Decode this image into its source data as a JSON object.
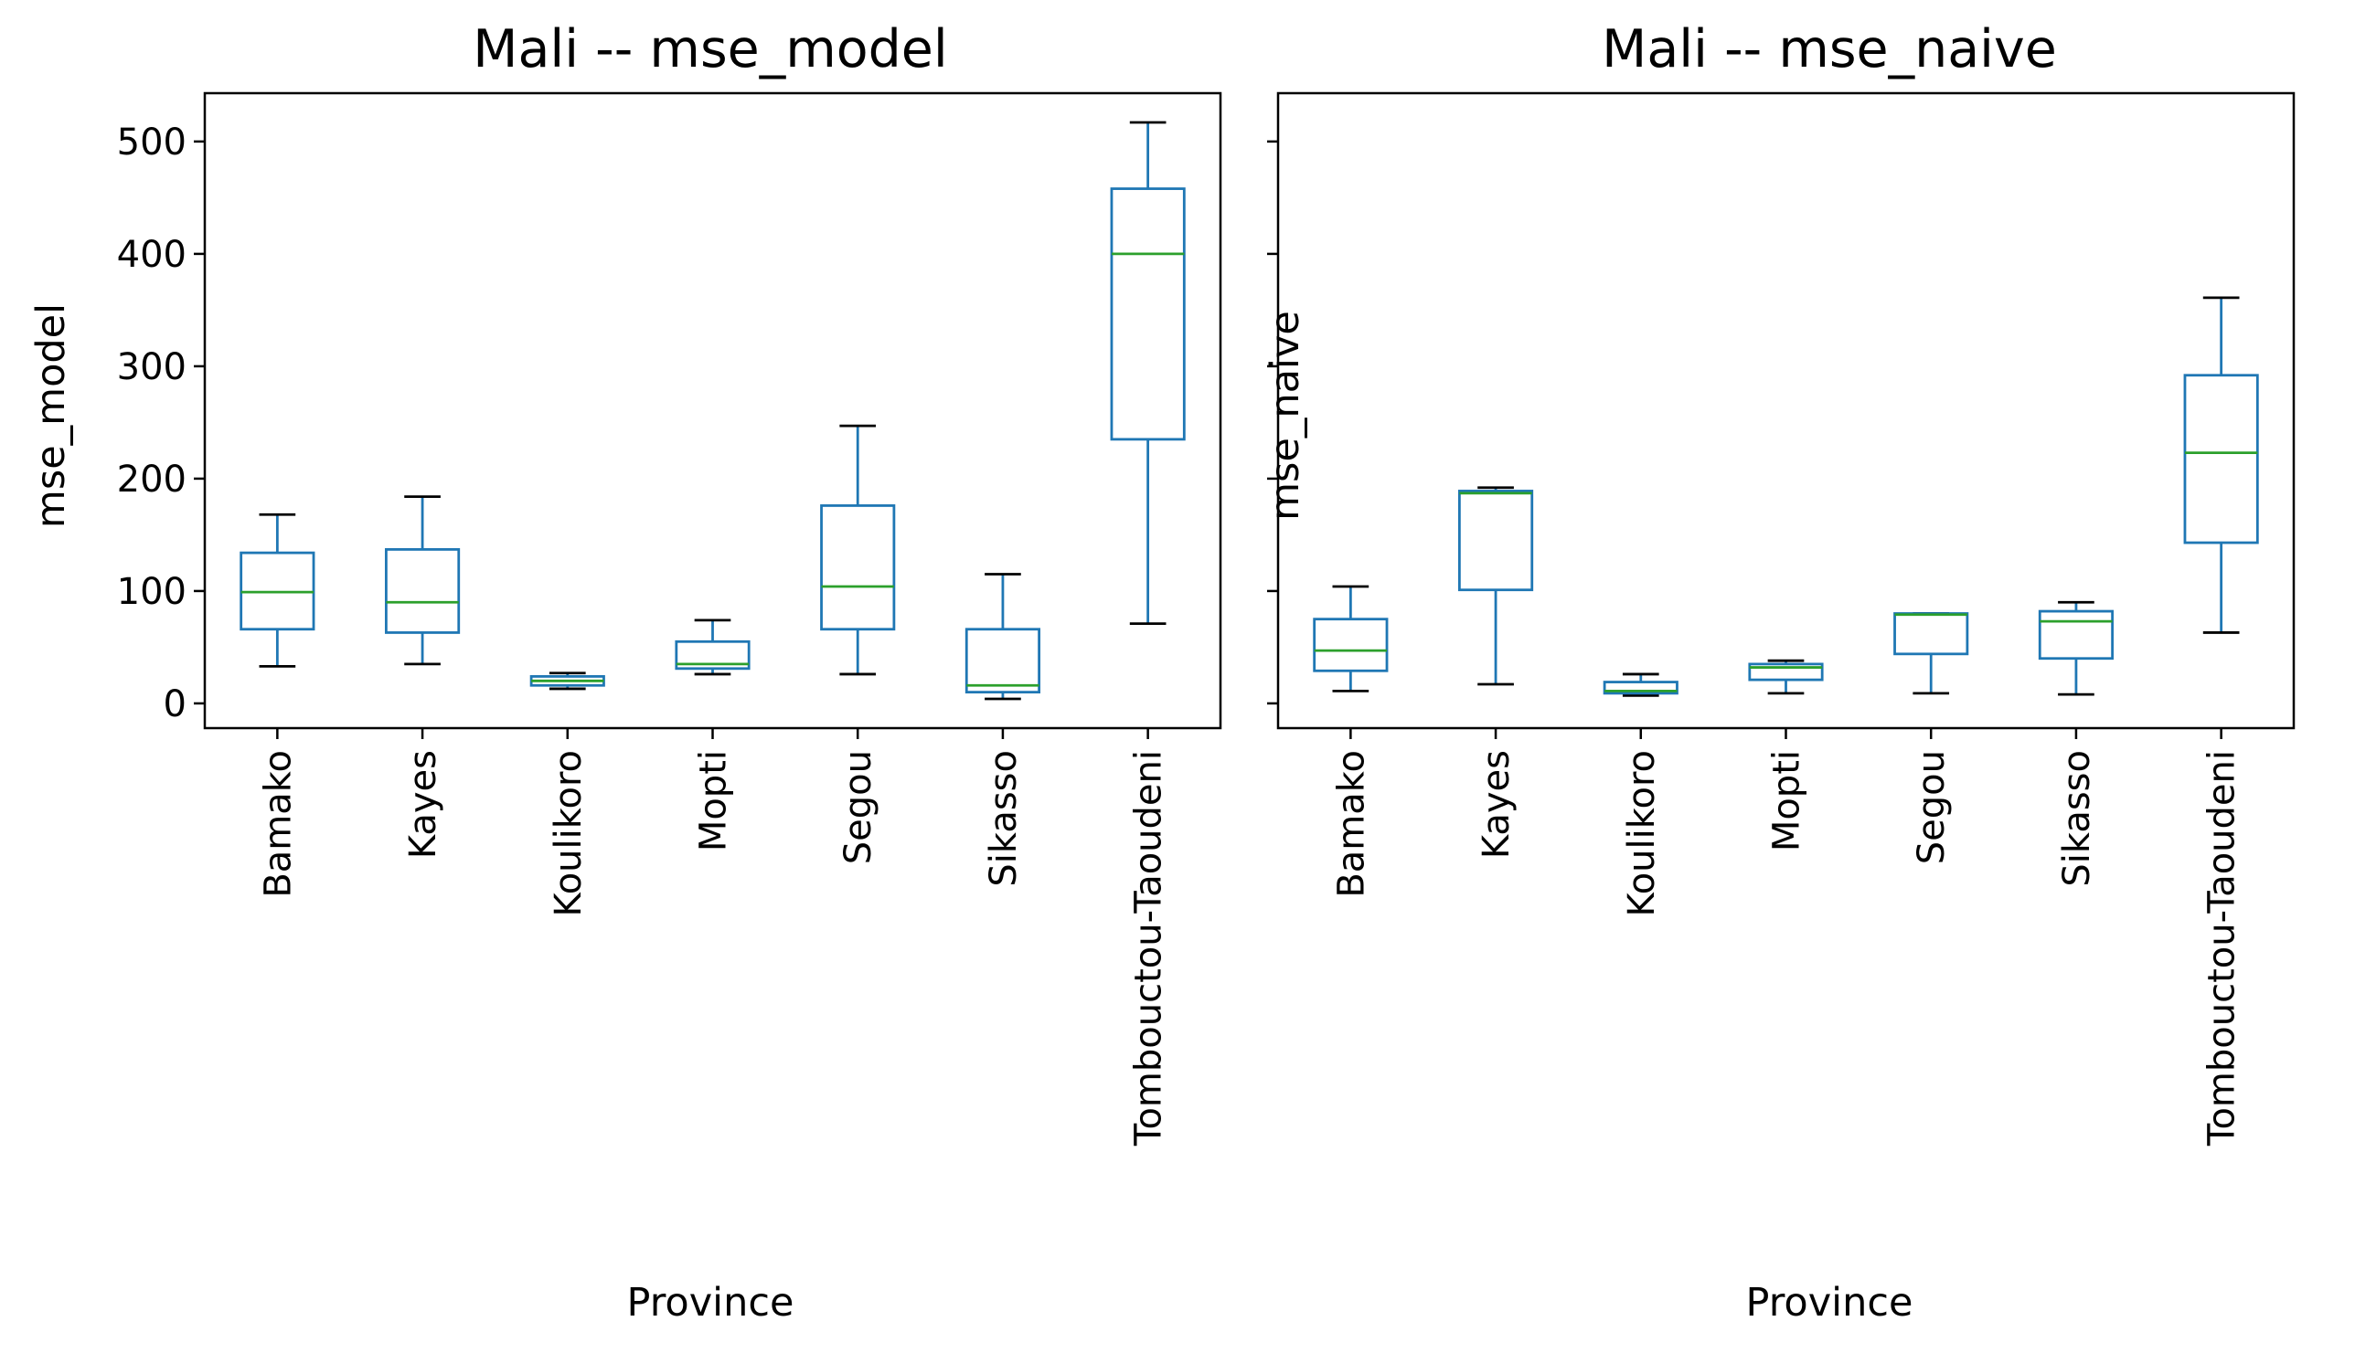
{
  "figure": {
    "background": "#ffffff"
  },
  "chart_data": [
    {
      "type": "box",
      "title": "Mali -- mse_model",
      "xlabel": "Province",
      "ylabel": "mse_model",
      "ylim": [
        -22,
        543
      ],
      "yticks": [
        0,
        100,
        200,
        300,
        400,
        500
      ],
      "show_ytick_labels": true,
      "grid": false,
      "categories": [
        "Bamako",
        "Kayes",
        "Koulikoro",
        "Mopti",
        "Segou",
        "Sikasso",
        "Tombouctou-Taoudeni"
      ],
      "boxes": [
        {
          "whisker_low": 33,
          "q1": 66,
          "median": 99,
          "q3": 134,
          "whisker_high": 168
        },
        {
          "whisker_low": 35,
          "q1": 63,
          "median": 90,
          "q3": 137,
          "whisker_high": 184
        },
        {
          "whisker_low": 13,
          "q1": 16,
          "median": 20,
          "q3": 24,
          "whisker_high": 27
        },
        {
          "whisker_low": 26,
          "q1": 31,
          "median": 35,
          "q3": 55,
          "whisker_high": 74
        },
        {
          "whisker_low": 26,
          "q1": 66,
          "median": 104,
          "q3": 176,
          "whisker_high": 247
        },
        {
          "whisker_low": 4,
          "q1": 10,
          "median": 16,
          "q3": 66,
          "whisker_high": 115
        },
        {
          "whisker_low": 71,
          "q1": 235,
          "median": 400,
          "q3": 458,
          "whisker_high": 517
        }
      ],
      "colors": {
        "box": "#1f77b4",
        "median": "#2ca02c",
        "cap": "#000000"
      }
    },
    {
      "type": "box",
      "title": "Mali -- mse_naive",
      "xlabel": "Province",
      "ylabel": "mse_naive",
      "ylim": [
        -22,
        543
      ],
      "yticks": [
        0,
        100,
        200,
        300,
        400,
        500
      ],
      "show_ytick_labels": false,
      "grid": false,
      "categories": [
        "Bamako",
        "Kayes",
        "Koulikoro",
        "Mopti",
        "Segou",
        "Sikasso",
        "Tombouctou-Taoudeni"
      ],
      "boxes": [
        {
          "whisker_low": 11,
          "q1": 29,
          "median": 47,
          "q3": 75,
          "whisker_high": 104
        },
        {
          "whisker_low": 17,
          "q1": 101,
          "median": 187,
          "q3": 189,
          "whisker_high": 192
        },
        {
          "whisker_low": 7,
          "q1": 9,
          "median": 11,
          "q3": 19,
          "whisker_high": 26
        },
        {
          "whisker_low": 9,
          "q1": 21,
          "median": 32,
          "q3": 35,
          "whisker_high": 38
        },
        {
          "whisker_low": 9,
          "q1": 44,
          "median": 79,
          "q3": 80,
          "whisker_high": 80
        },
        {
          "whisker_low": 8,
          "q1": 40,
          "median": 73,
          "q3": 82,
          "whisker_high": 90
        },
        {
          "whisker_low": 63,
          "q1": 143,
          "median": 223,
          "q3": 292,
          "whisker_high": 361
        }
      ],
      "colors": {
        "box": "#1f77b4",
        "median": "#2ca02c",
        "cap": "#000000"
      }
    }
  ]
}
